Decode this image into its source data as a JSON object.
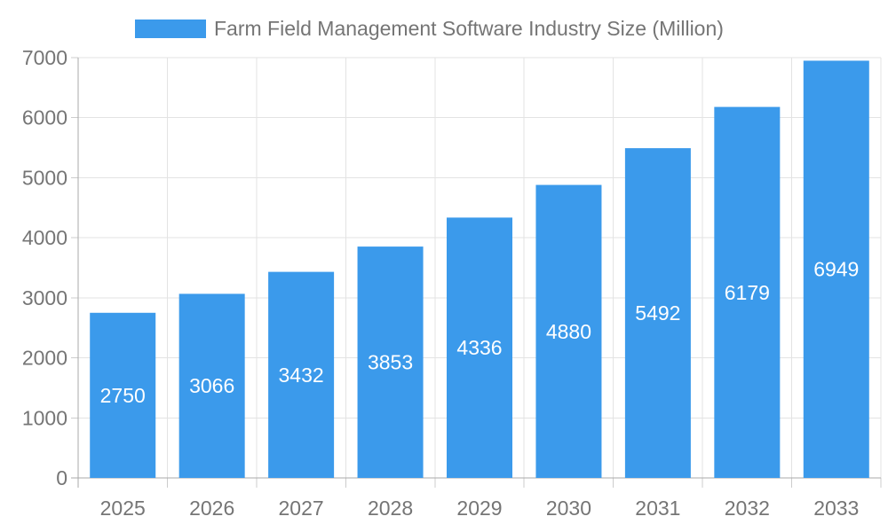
{
  "chart_data": {
    "type": "bar",
    "title": "Farm Field Management Software Industry Size (Million)",
    "categories": [
      "2025",
      "2026",
      "2027",
      "2028",
      "2029",
      "2030",
      "2031",
      "2032",
      "2033"
    ],
    "values": [
      2750,
      3066,
      3432,
      3853,
      4336,
      4880,
      5492,
      6179,
      6949
    ],
    "xlabel": "",
    "ylabel": "",
    "ylim": [
      0,
      7000
    ],
    "ytick_step": 1000,
    "ytick_labels": [
      "0",
      "1000",
      "2000",
      "3000",
      "4000",
      "5000",
      "6000",
      "7000"
    ],
    "grid": true,
    "legend_position": "top",
    "value_labels_shown": true,
    "colors": {
      "bar": "#3b9aeb",
      "value_label": "#ffffff",
      "axis_label": "#757575",
      "gridline": "#e3e3e3",
      "axis_line": "#aaaaaa",
      "tick": "#cccccc"
    }
  }
}
